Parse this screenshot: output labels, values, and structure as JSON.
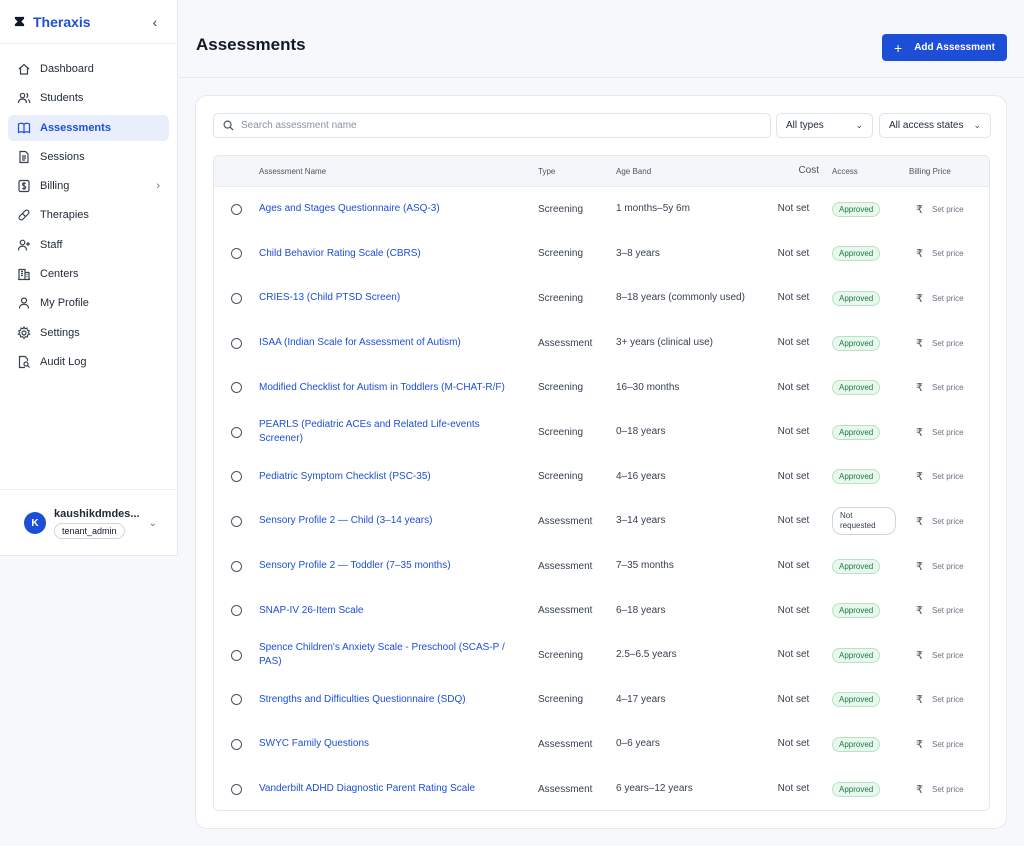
{
  "brand": {
    "name": "Theraxis"
  },
  "sidebar": {
    "items": [
      {
        "label": "Dashboard",
        "icon": "home-icon"
      },
      {
        "label": "Students",
        "icon": "users-icon"
      },
      {
        "label": "Assessments",
        "icon": "book-icon",
        "active": true
      },
      {
        "label": "Sessions",
        "icon": "document-icon"
      },
      {
        "label": "Billing",
        "icon": "dollar-icon",
        "has_children": true
      },
      {
        "label": "Therapies",
        "icon": "pill-icon"
      },
      {
        "label": "Staff",
        "icon": "user-plus-icon"
      },
      {
        "label": "Centers",
        "icon": "building-icon"
      },
      {
        "label": "My Profile",
        "icon": "user-icon"
      },
      {
        "label": "Settings",
        "icon": "gear-icon"
      },
      {
        "label": "Audit Log",
        "icon": "file-search-icon"
      }
    ]
  },
  "user": {
    "initial": "K",
    "name": "kaushikdmdes...",
    "role": "tenant_admin"
  },
  "header": {
    "title": "Assessments",
    "add_label": "Add Assessment"
  },
  "filters": {
    "search_placeholder": "Search assessment name",
    "type_selected": "All types",
    "access_selected": "All access states"
  },
  "table": {
    "columns": [
      "Assessment Name",
      "Type",
      "Age Band",
      "Cost",
      "Access",
      "Billing Price"
    ],
    "rows": [
      {
        "name": "Ages and Stages Questionnaire (ASQ-3)",
        "type": "Screening",
        "age": "1 months–5y 6m",
        "cost": "Not set",
        "access": "Approved",
        "price": "Set price"
      },
      {
        "name": "Child Behavior Rating Scale (CBRS)",
        "type": "Screening",
        "age": "3–8 years",
        "cost": "Not set",
        "access": "Approved",
        "price": "Set price"
      },
      {
        "name": "CRIES-13 (Child PTSD Screen)",
        "type": "Screening",
        "age": "8–18 years (commonly used)",
        "cost": "Not set",
        "access": "Approved",
        "price": "Set price"
      },
      {
        "name": "ISAA (Indian Scale for Assessment of Autism)",
        "type": "Assessment",
        "age": "3+ years (clinical use)",
        "cost": "Not set",
        "access": "Approved",
        "price": "Set price"
      },
      {
        "name": "Modified Checklist for Autism in Toddlers (M-CHAT-R/F)",
        "type": "Screening",
        "age": "16–30 months",
        "cost": "Not set",
        "access": "Approved",
        "price": "Set price"
      },
      {
        "name": "PEARLS (Pediatric ACEs and Related Life-events Screener)",
        "type": "Screening",
        "age": "0–18 years",
        "cost": "Not set",
        "access": "Approved",
        "price": "Set price"
      },
      {
        "name": "Pediatric Symptom Checklist (PSC-35)",
        "type": "Screening",
        "age": "4–16 years",
        "cost": "Not set",
        "access": "Approved",
        "price": "Set price"
      },
      {
        "name": "Sensory Profile 2 — Child (3–14 years)",
        "type": "Assessment",
        "age": "3–14 years",
        "cost": "Not set",
        "access": "Not requested",
        "price": "Set price"
      },
      {
        "name": "Sensory Profile 2 — Toddler (7–35 months)",
        "type": "Assessment",
        "age": "7–35 months",
        "cost": "Not set",
        "access": "Approved",
        "price": "Set price"
      },
      {
        "name": "SNAP-IV 26-Item Scale",
        "type": "Assessment",
        "age": "6–18 years",
        "cost": "Not set",
        "access": "Approved",
        "price": "Set price"
      },
      {
        "name": "Spence Children's Anxiety Scale - Preschool (SCAS-P / PAS)",
        "type": "Screening",
        "age": "2.5–6.5 years",
        "cost": "Not set",
        "access": "Approved",
        "price": "Set price"
      },
      {
        "name": "Strengths and Difficulties Questionnaire (SDQ)",
        "type": "Screening",
        "age": "4–17 years",
        "cost": "Not set",
        "access": "Approved",
        "price": "Set price"
      },
      {
        "name": "SWYC Family Questions",
        "type": "Assessment",
        "age": "0–6 years",
        "cost": "Not set",
        "access": "Approved",
        "price": "Set price"
      },
      {
        "name": "Vanderbilt ADHD Diagnostic Parent Rating Scale",
        "type": "Assessment",
        "age": "6 years–12 years",
        "cost": "Not set",
        "access": "Approved",
        "price": "Set price"
      }
    ]
  },
  "colors": {
    "accent": "#1d4ed8",
    "approved": "#15803d"
  }
}
